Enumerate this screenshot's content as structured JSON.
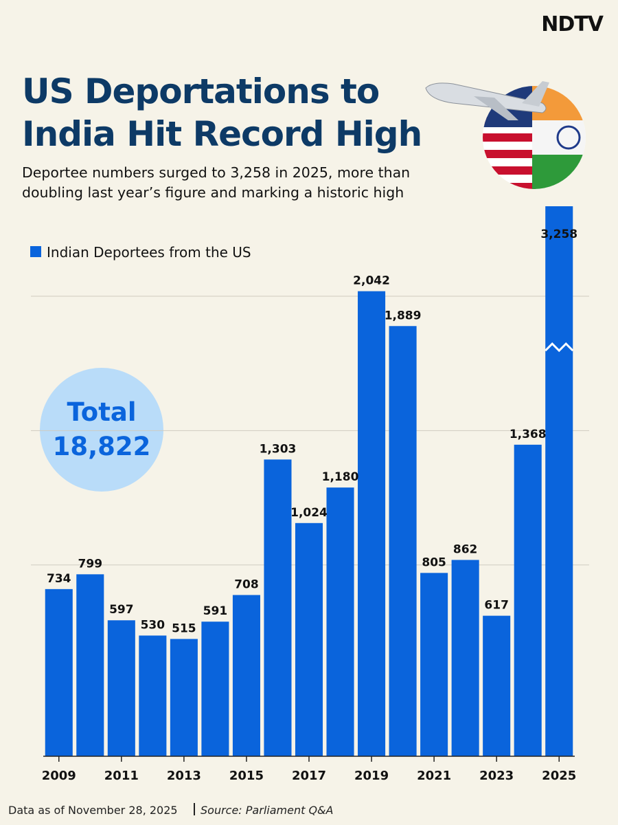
{
  "logo": "NDTV",
  "title_lines": [
    "US Deportations to",
    "India Hit Record High"
  ],
  "subtitle_lines": [
    "Deportee numbers surged to 3,258 in 2025, more than",
    "doubling last year’s figure and marking a historic high"
  ],
  "total": {
    "label": "Total",
    "value": "18,822"
  },
  "footer": {
    "note": "Data as of November 28, 2025",
    "source": "Source: Parliament Q&A"
  },
  "chart_data": {
    "type": "bar",
    "categories": [
      "2009",
      null,
      "2011",
      null,
      "2013",
      null,
      "2015",
      null,
      "2017",
      null,
      "2019",
      null,
      "2021",
      null,
      "2023",
      null,
      "2025"
    ],
    "series": [
      {
        "name": "Indian Deportees from the US",
        "color": "#0a64dc",
        "values": [
          734,
          799,
          597,
          530,
          515,
          591,
          708,
          1303,
          1024,
          1180,
          2042,
          1889,
          805,
          862,
          617,
          1368,
          3258
        ],
        "value_labels": [
          "734",
          "799",
          "597",
          "530",
          "515",
          "591",
          "708",
          "1,303",
          "1,024",
          "1,180",
          "2,042",
          "1,889",
          "805",
          "862",
          "617",
          "1,368",
          "3,258"
        ]
      }
    ],
    "ylim": [
      0,
      2240
    ],
    "yticks": [
      840,
      1430,
      2020
    ],
    "grid": true,
    "legend": "top-left"
  }
}
